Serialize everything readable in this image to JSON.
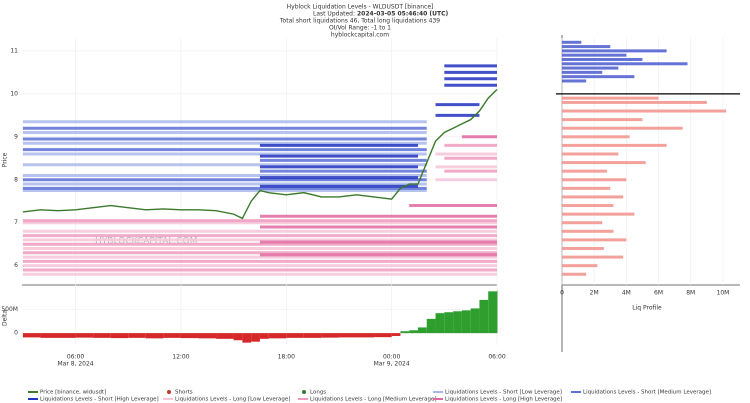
{
  "chart_data": {
    "type": "liquidation-levels",
    "title": "Hyblock Liquidation Levels - WLDUSDT [binance]",
    "updated_label": "Last Updated:",
    "updated_value": "2024-03-05 05:46:40 (UTC)",
    "totals": "Total short liquidations 46, Total long liquidations 439",
    "range": "OI/Vol Range: -1 to 1",
    "site": "hyblockcapital.com",
    "watermark": "HYBLOCKCAPITAL.COM",
    "ylabel": "Price",
    "delta_label": "Delta",
    "profile_label": "Liq Profile",
    "grid": true,
    "xlim": [
      2.95,
      30
    ],
    "xticks": [
      {
        "value": 6,
        "label": "06:00"
      },
      {
        "value": 12,
        "label": "12:00"
      },
      {
        "value": 18,
        "label": "18:00"
      },
      {
        "value": 24,
        "label": "00:00"
      },
      {
        "value": 30,
        "label": "06:00"
      }
    ],
    "x_date_labels": [
      {
        "value": 6,
        "label": "Mar 8, 2024"
      },
      {
        "value": 24,
        "label": "Mar 9, 2024"
      }
    ],
    "ylim": [
      5.55,
      11.3
    ],
    "yticks": [
      6,
      7,
      8,
      9,
      10,
      11
    ],
    "x": [
      3,
      4,
      5,
      6,
      7,
      8,
      9,
      10,
      11,
      12,
      13,
      14,
      15,
      15.5,
      16,
      16.5,
      17,
      18,
      19,
      20,
      21,
      22,
      23,
      24,
      24.5,
      25,
      25.5,
      26,
      26.5,
      27,
      27.5,
      28,
      28.5,
      29,
      29.5,
      30
    ],
    "series": [
      {
        "name": "Price [binance, wldusdt]",
        "color": "#3a7a2a",
        "values": [
          7.25,
          7.3,
          7.28,
          7.3,
          7.35,
          7.4,
          7.35,
          7.3,
          7.32,
          7.3,
          7.3,
          7.28,
          7.2,
          7.1,
          7.5,
          7.75,
          7.7,
          7.65,
          7.7,
          7.6,
          7.6,
          7.65,
          7.6,
          7.55,
          7.8,
          7.9,
          7.9,
          8.4,
          8.9,
          9.1,
          9.2,
          9.3,
          9.4,
          9.6,
          9.9,
          10.1
        ]
      },
      {
        "name": "Shorts",
        "color": "#c0392b"
      },
      {
        "name": "Longs",
        "color": "#2e7d32"
      }
    ],
    "delta": [
      -90000000,
      -100000000,
      -100000000,
      -95000000,
      -100000000,
      -105000000,
      -100000000,
      -110000000,
      -100000000,
      -105000000,
      -110000000,
      -120000000,
      -150000000,
      -200000000,
      -180000000,
      -120000000,
      -110000000,
      -100000000,
      -100000000,
      -95000000,
      -90000000,
      -90000000,
      -85000000,
      -60000000,
      40000000,
      60000000,
      120000000,
      300000000,
      420000000,
      440000000,
      460000000,
      480000000,
      520000000,
      700000000,
      880000000,
      900000000
    ],
    "delta_colors": {
      "positive": "#2e9e2e",
      "negative": "#d62828"
    },
    "delta_lim": [
      -250000000,
      950000000
    ],
    "delta_ticks": [
      {
        "value": 500000000,
        "label": "500M"
      },
      0
    ],
    "liq_series": [
      {
        "name": "Liquidations Levels - Short [Low Leverage]",
        "color": "#a9b8ec",
        "levels": [
          [
            7.75,
            3,
            26
          ],
          [
            7.9,
            3,
            26
          ],
          [
            8.1,
            3,
            26
          ],
          [
            8.35,
            3,
            26
          ],
          [
            8.6,
            3,
            26
          ],
          [
            8.85,
            3,
            26
          ],
          [
            9.1,
            3,
            26
          ],
          [
            9.35,
            3,
            26
          ]
        ]
      },
      {
        "name": "Liquidations Levels - Short [Medium Leverage]",
        "color": "#5a6fd6",
        "levels": [
          [
            7.8,
            3,
            26
          ],
          [
            8.0,
            3,
            26
          ],
          [
            8.2,
            16.5,
            26
          ],
          [
            8.45,
            16.5,
            26
          ],
          [
            8.7,
            3,
            26
          ],
          [
            8.95,
            3,
            26
          ],
          [
            9.2,
            3,
            26
          ]
        ]
      },
      {
        "name": "Liquidations Levels - Short [High Leverage]",
        "color": "#2233c0",
        "levels": [
          [
            7.85,
            16.5,
            25.5
          ],
          [
            8.05,
            16.5,
            25.5
          ],
          [
            8.3,
            16.5,
            25.5
          ],
          [
            8.55,
            16.5,
            25.5
          ],
          [
            8.8,
            16.5,
            25.5
          ],
          [
            9.5,
            26.5,
            29
          ],
          [
            9.75,
            26.5,
            29
          ],
          [
            10.2,
            27,
            30
          ],
          [
            10.35,
            27,
            30
          ],
          [
            10.5,
            27,
            30
          ],
          [
            10.65,
            27,
            30
          ]
        ]
      },
      {
        "name": "Liquidations Levels - Long [Low Leverage]",
        "color": "#f7c6d9",
        "levels": [
          [
            7.0,
            3,
            30
          ],
          [
            6.8,
            3,
            30
          ],
          [
            6.6,
            3,
            30
          ],
          [
            6.4,
            3,
            30
          ],
          [
            6.2,
            3,
            30
          ],
          [
            6.0,
            3,
            30
          ],
          [
            5.8,
            3,
            30
          ],
          [
            8.0,
            26.5,
            30
          ],
          [
            8.3,
            26.5,
            30
          ],
          [
            8.6,
            26.5,
            30
          ]
        ]
      },
      {
        "name": "Liquidations Levels - Long [Medium Leverage]",
        "color": "#ef9bbd",
        "levels": [
          [
            7.05,
            3,
            30
          ],
          [
            6.7,
            3,
            30
          ],
          [
            6.5,
            3,
            30
          ],
          [
            6.3,
            3,
            30
          ],
          [
            6.1,
            3,
            30
          ],
          [
            5.9,
            3,
            30
          ],
          [
            8.2,
            27,
            30
          ],
          [
            8.5,
            27,
            30
          ],
          [
            8.8,
            27,
            30
          ]
        ]
      },
      {
        "name": "Liquidations Levels - Long [High Leverage]",
        "color": "#e06aa0",
        "levels": [
          [
            7.15,
            16.5,
            30
          ],
          [
            6.9,
            16.5,
            30
          ],
          [
            6.55,
            16.5,
            30
          ],
          [
            6.25,
            16.5,
            30
          ],
          [
            9.0,
            28,
            30
          ],
          [
            7.4,
            25,
            30
          ]
        ]
      }
    ],
    "current_price": 10.0,
    "profile_xlim": [
      0,
      11000000
    ],
    "profile_xticks": [
      0,
      {
        "value": 2000000,
        "label": "2M"
      },
      {
        "value": 4000000,
        "label": "4M"
      },
      {
        "value": 6000000,
        "label": "6M"
      },
      {
        "value": 8000000,
        "label": "8M"
      },
      {
        "value": 10000000,
        "label": "10M"
      }
    ],
    "profile": [
      {
        "color": "#4a5bd0",
        "levels": [
          [
            11.2,
            1200000
          ],
          [
            11.1,
            3000000
          ],
          [
            11.0,
            6500000
          ],
          [
            10.9,
            4000000
          ],
          [
            10.8,
            5000000
          ],
          [
            10.7,
            7800000
          ],
          [
            10.6,
            3500000
          ],
          [
            10.5,
            2500000
          ],
          [
            10.4,
            4500000
          ],
          [
            10.3,
            1500000
          ]
        ]
      },
      {
        "color": "#f2918a",
        "levels": [
          [
            9.9,
            6000000
          ],
          [
            9.8,
            9000000
          ],
          [
            9.6,
            10200000
          ],
          [
            9.4,
            5000000
          ],
          [
            9.2,
            7500000
          ],
          [
            9.0,
            4200000
          ],
          [
            8.8,
            6500000
          ],
          [
            8.6,
            3500000
          ],
          [
            8.4,
            5200000
          ],
          [
            8.2,
            2800000
          ],
          [
            8.0,
            4000000
          ],
          [
            7.8,
            3000000
          ],
          [
            7.6,
            3800000
          ],
          [
            7.4,
            3200000
          ],
          [
            7.2,
            4500000
          ],
          [
            7.0,
            2500000
          ],
          [
            6.8,
            3200000
          ],
          [
            6.6,
            4000000
          ],
          [
            6.4,
            2600000
          ],
          [
            6.2,
            3800000
          ],
          [
            6.0,
            2200000
          ],
          [
            5.8,
            1500000
          ]
        ]
      }
    ]
  }
}
